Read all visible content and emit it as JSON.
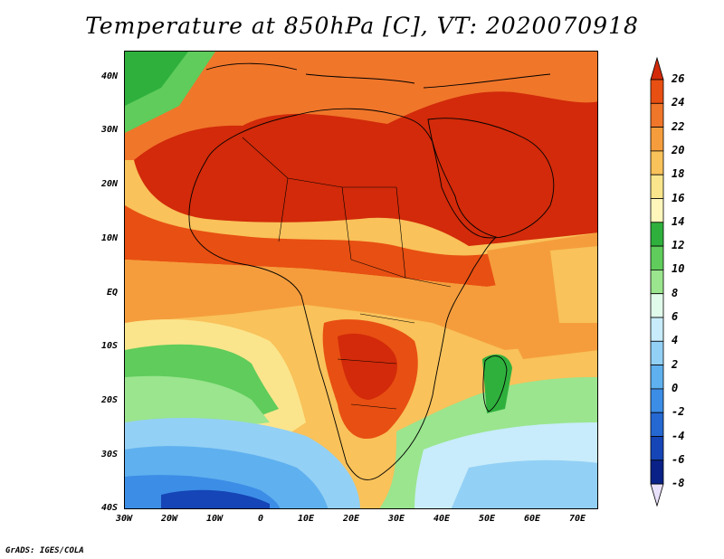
{
  "title": "Temperature at 850hPa [C], VT: 2020070918",
  "credit": "GrADS: IGES/COLA",
  "lat_labels": [
    "40N",
    "30N",
    "20N",
    "10N",
    "EQ",
    "10S",
    "20S",
    "30S",
    "40S"
  ],
  "lon_labels": [
    "30W",
    "20W",
    "10W",
    "0",
    "10E",
    "20E",
    "30E",
    "40E",
    "50E",
    "60E",
    "70E"
  ],
  "colorbar": {
    "levels": [
      "26",
      "24",
      "22",
      "20",
      "18",
      "16",
      "14",
      "12",
      "10",
      "8",
      "6",
      "4",
      "2",
      "0",
      "-2",
      "-4",
      "-6",
      "-8"
    ],
    "colors": [
      "#d22a0a",
      "#e84f12",
      "#f0762a",
      "#f59d3c",
      "#f9c25a",
      "#fbe58c",
      "#fff6bc",
      "#2fb03d",
      "#5fcc5b",
      "#9ae58e",
      "#e0fbea",
      "#c8ecfb",
      "#93d0f5",
      "#5fb0ef",
      "#3c8de6",
      "#2668d2",
      "#1545b6",
      "#0a2288",
      "#0d1866"
    ]
  },
  "map": {
    "extent": {
      "lon_min": -30,
      "lon_max": 75,
      "lat_min": -40,
      "lat_max": 45
    },
    "ocean_background": "#f9c25a"
  }
}
